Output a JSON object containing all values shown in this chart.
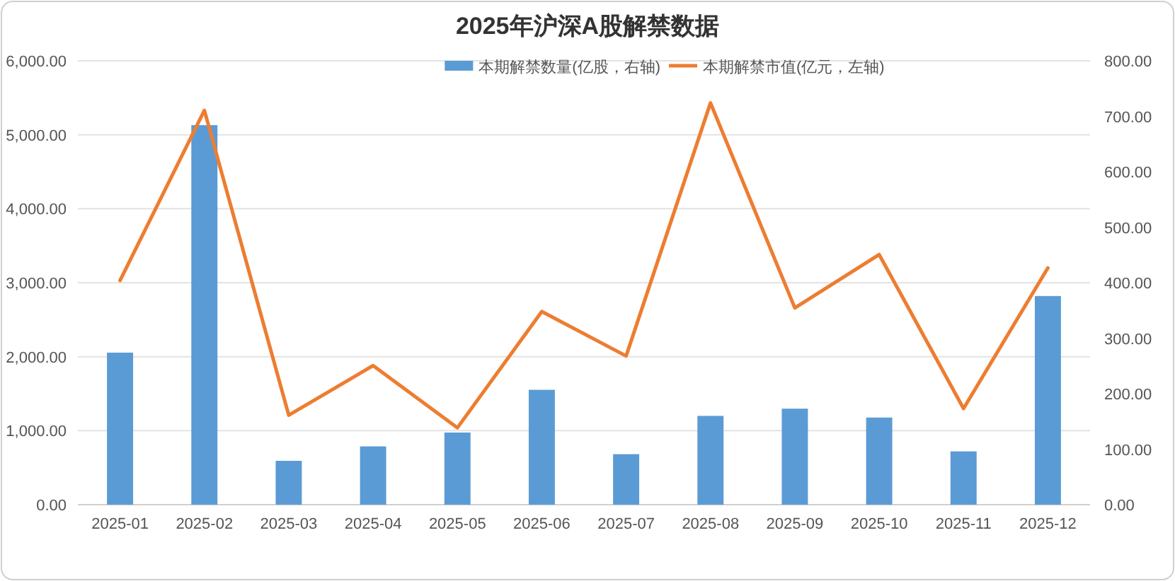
{
  "chart_data": {
    "type": "bar",
    "title": "2025年沪深A股解禁数据",
    "categories": [
      "2025-01",
      "2025-02",
      "2025-03",
      "2025-04",
      "2025-05",
      "2025-06",
      "2025-07",
      "2025-08",
      "2025-09",
      "2025-10",
      "2025-11",
      "2025-12"
    ],
    "series": [
      {
        "name": "本期解禁数量(亿股，右轴)",
        "axis": "y2",
        "color": "#5b9bd5",
        "values": [
          274,
          684,
          79,
          105,
          130,
          207,
          91,
          160,
          173,
          157,
          96,
          376
        ]
      },
      {
        "name": "本期解禁市值(亿元，左轴)",
        "type": "line",
        "axis": "y",
        "color": "#ed7d31",
        "values": [
          3030,
          5330,
          1210,
          1880,
          1040,
          2610,
          2010,
          5430,
          2660,
          3380,
          1300,
          3200
        ]
      }
    ],
    "ylim": [
      0,
      6000
    ],
    "yticks": [
      {
        "value": 0,
        "label": "0.00"
      },
      {
        "value": 1000,
        "label": "1,000.00"
      },
      {
        "value": 2000,
        "label": "2,000.00"
      },
      {
        "value": 3000,
        "label": "3,000.00"
      },
      {
        "value": 4000,
        "label": "4,000.00"
      },
      {
        "value": 5000,
        "label": "5,000.00"
      },
      {
        "value": 6000,
        "label": "6,000.00"
      }
    ],
    "y2lim": [
      0,
      800
    ],
    "y2ticks": [
      {
        "value": 0,
        "label": "0.00"
      },
      {
        "value": 100,
        "label": "100.00"
      },
      {
        "value": 200,
        "label": "200.00"
      },
      {
        "value": 300,
        "label": "300.00"
      },
      {
        "value": 400,
        "label": "400.00"
      },
      {
        "value": 500,
        "label": "500.00"
      },
      {
        "value": 600,
        "label": "600.00"
      },
      {
        "value": 700,
        "label": "700.00"
      },
      {
        "value": 800,
        "label": "800.00"
      }
    ],
    "grid": "y",
    "legend": "top",
    "marker": "none",
    "line_style": "solid"
  }
}
